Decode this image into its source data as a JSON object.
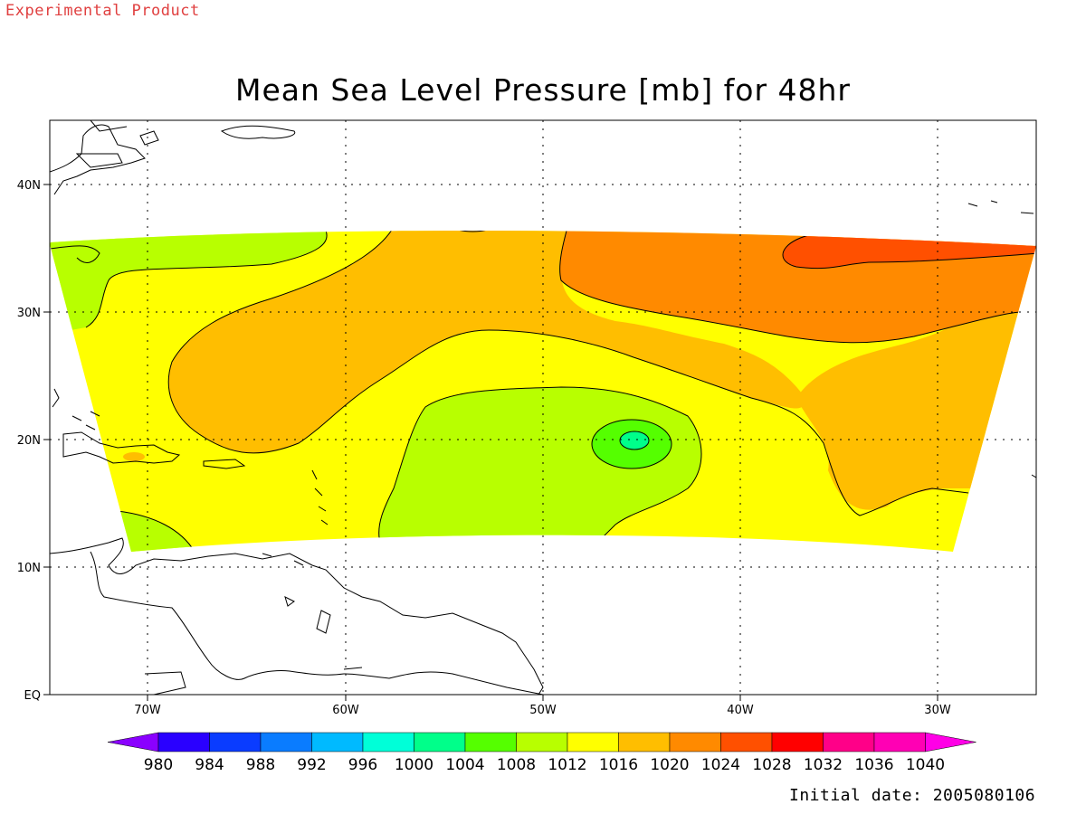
{
  "header": {
    "product_label": "Experimental Product",
    "title": "Mean Sea Level Pressure [mb] for 48hr"
  },
  "footer": {
    "initial_date": "Initial date: 2005080106"
  },
  "axes": {
    "lon_ticks": [
      "70W",
      "60W",
      "50W",
      "40W",
      "30W"
    ],
    "lat_ticks": [
      "40N",
      "30N",
      "20N",
      "10N",
      "EQ"
    ],
    "lon_range": [
      -75,
      -25
    ],
    "lat_range": [
      0,
      45
    ],
    "gridlines": "dotted"
  },
  "colorbar": {
    "labels": [
      "980",
      "984",
      "988",
      "992",
      "996",
      "1000",
      "1004",
      "1008",
      "1012",
      "1016",
      "1020",
      "1024",
      "1028",
      "1032",
      "1036",
      "1040"
    ],
    "colors": [
      "#8a00ff",
      "#2a00ff",
      "#0a3cff",
      "#0a7cff",
      "#00baff",
      "#00ffd8",
      "#00ff8a",
      "#55ff00",
      "#b8ff00",
      "#ffff00",
      "#ffbe00",
      "#ff8a00",
      "#ff5000",
      "#ff0000",
      "#ff0088",
      "#ff00b4",
      "#ff00e6"
    ]
  },
  "fields": {
    "colors": {
      "c1004": "#55ff00",
      "c1008": "#b8ff00",
      "c1012": "#ffff00",
      "c1016": "#ffbe00",
      "c1020": "#ff8a00",
      "c1024": "#ff5000",
      "coast": "#000000"
    }
  }
}
